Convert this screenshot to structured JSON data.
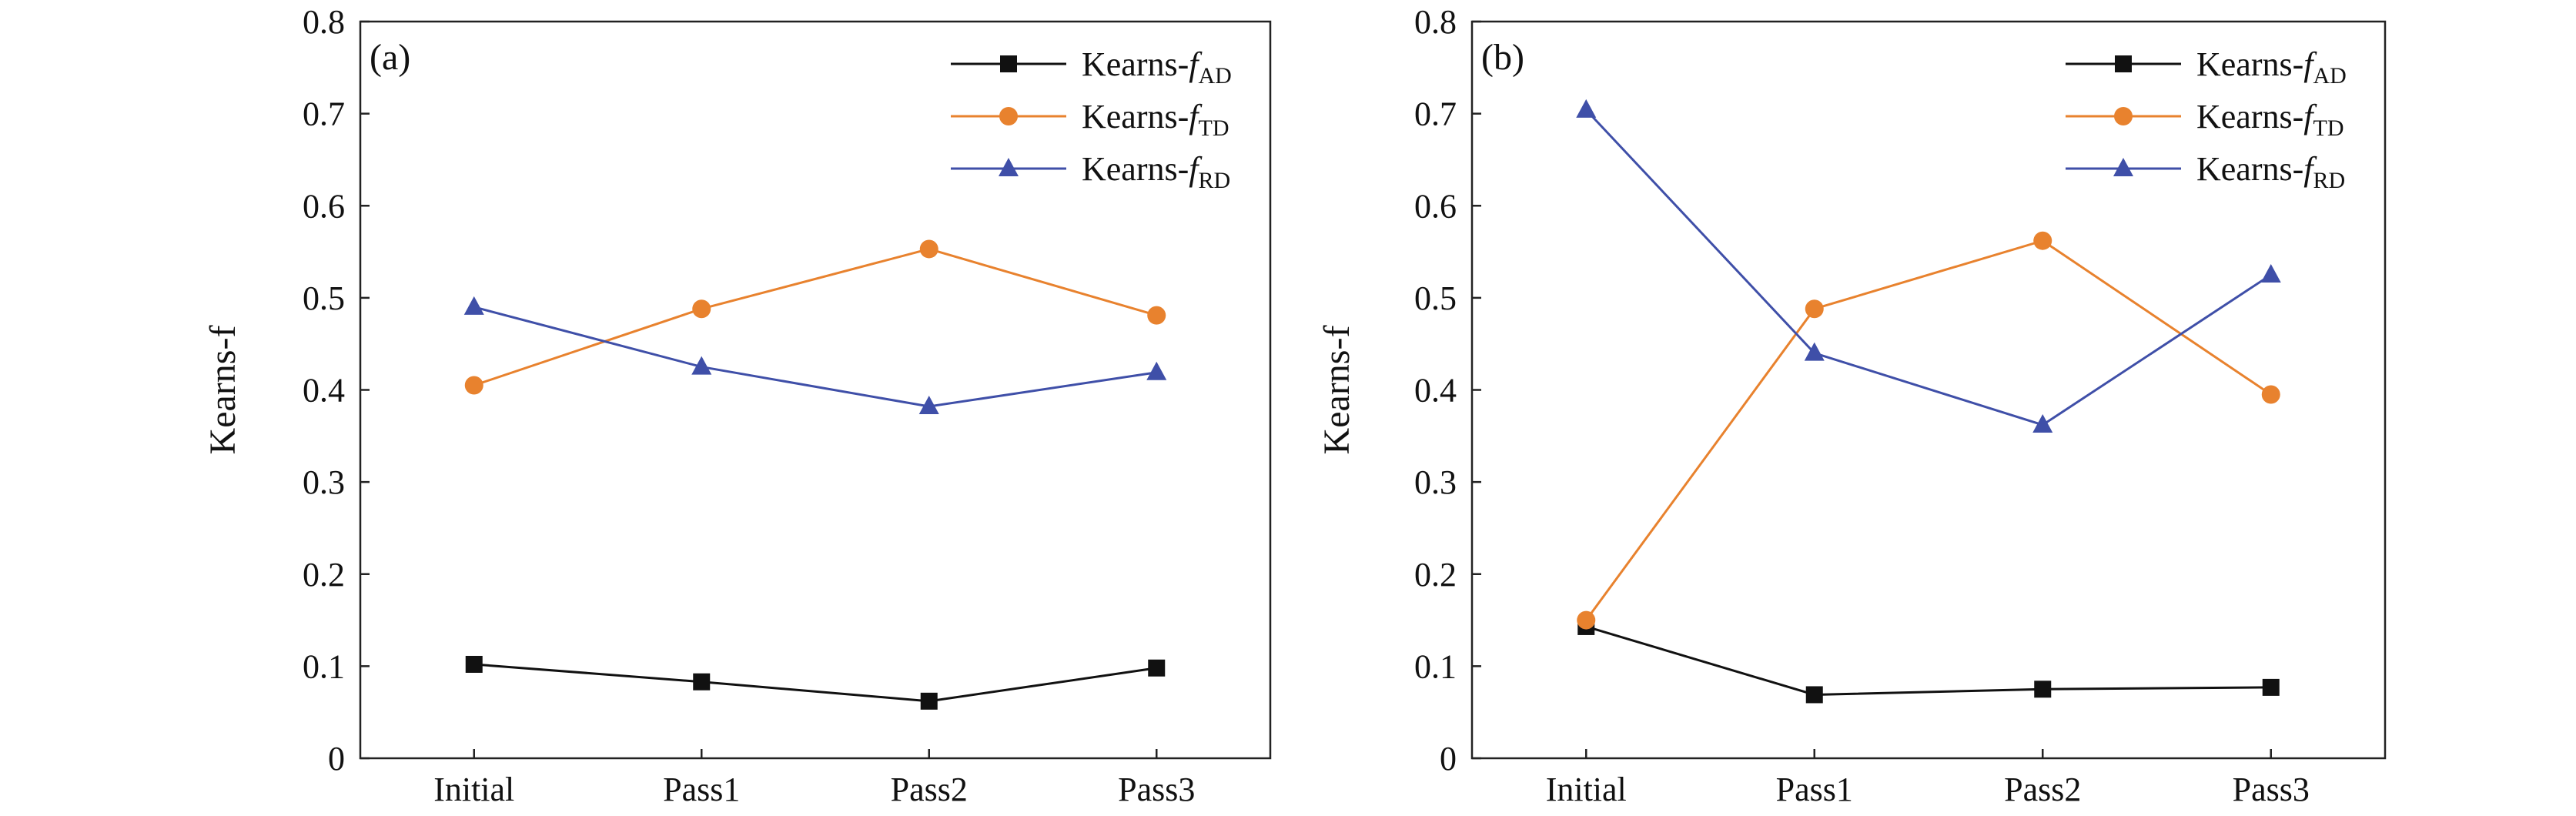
{
  "chart_data": [
    {
      "panel_label": "(a)",
      "type": "line",
      "ylabel": "Kearns-f",
      "xlabel": "",
      "categories": [
        "Initial",
        "Pass1",
        "Pass2",
        "Pass3"
      ],
      "yticks": [
        "0",
        "0.1",
        "0.2",
        "0.3",
        "0.4",
        "0.5",
        "0.6",
        "0.7",
        "0.8"
      ],
      "ylim": [
        0,
        0.8
      ],
      "legend_position": "top-right",
      "grid": false,
      "series": [
        {
          "name_main": "Kearns-",
          "name_italic": "f",
          "name_sub": "AD",
          "marker": "square",
          "color": "#111111",
          "values": [
            0.102,
            0.083,
            0.062,
            0.098
          ]
        },
        {
          "name_main": "Kearns-",
          "name_italic": "f",
          "name_sub": "TD",
          "marker": "circle",
          "color": "#e8822e",
          "values": [
            0.405,
            0.488,
            0.553,
            0.481
          ]
        },
        {
          "name_main": "Kearns-",
          "name_italic": "f",
          "name_sub": "RD",
          "marker": "triangle",
          "color": "#3f4fa8",
          "values": [
            0.49,
            0.425,
            0.382,
            0.419
          ]
        }
      ]
    },
    {
      "panel_label": "(b)",
      "type": "line",
      "ylabel": "Kearns-f",
      "xlabel": "",
      "categories": [
        "Initial",
        "Pass1",
        "Pass2",
        "Pass3"
      ],
      "yticks": [
        "0",
        "0.1",
        "0.2",
        "0.3",
        "0.4",
        "0.5",
        "0.6",
        "0.7",
        "0.8"
      ],
      "ylim": [
        0,
        0.8
      ],
      "legend_position": "top-right",
      "grid": false,
      "series": [
        {
          "name_main": "Kearns-",
          "name_italic": "f",
          "name_sub": "AD",
          "marker": "square",
          "color": "#111111",
          "values": [
            0.143,
            0.069,
            0.075,
            0.077
          ]
        },
        {
          "name_main": "Kearns-",
          "name_italic": "f",
          "name_sub": "TD",
          "marker": "circle",
          "color": "#e8822e",
          "values": [
            0.15,
            0.488,
            0.562,
            0.395
          ]
        },
        {
          "name_main": "Kearns-",
          "name_italic": "f",
          "name_sub": "RD",
          "marker": "triangle",
          "color": "#3f4fa8",
          "values": [
            0.704,
            0.44,
            0.362,
            0.525
          ]
        }
      ]
    }
  ]
}
